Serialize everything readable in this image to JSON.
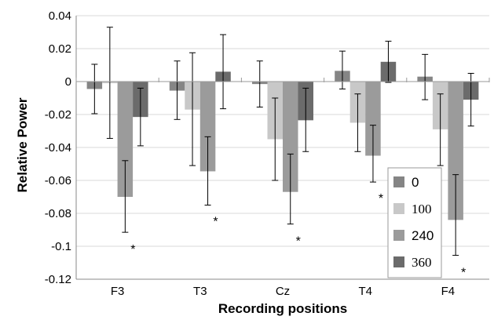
{
  "chart_data": {
    "type": "bar",
    "title": "",
    "xlabel": "Recording positions",
    "ylabel": "Relative Power",
    "categories": [
      "F3",
      "T3",
      "Cz",
      "T4",
      "F4"
    ],
    "ylim": [
      -0.12,
      0.04
    ],
    "yticks": [
      0.04,
      0.02,
      0,
      -0.02,
      -0.04,
      -0.06,
      -0.08,
      -0.1,
      -0.12
    ],
    "ytick_labels": [
      "0.04",
      "0.02",
      "0",
      "-0.02",
      "-0.04",
      "-0.06",
      "-0.08",
      "-0.1",
      "-0.12"
    ],
    "grid": "horizontal",
    "legend_position": "bottom-right",
    "series": [
      {
        "name": "0",
        "color": "#858585",
        "values": [
          -0.0045,
          -0.0055,
          -0.0015,
          0.0065,
          0.003
        ],
        "err_low": [
          -0.0195,
          -0.023,
          -0.0155,
          -0.0045,
          -0.011
        ],
        "err_high": [
          0.0105,
          0.0125,
          0.0125,
          0.0185,
          0.0165
        ]
      },
      {
        "name": "100",
        "color": "#c8c8c8",
        "values": [
          -0.001,
          -0.017,
          -0.035,
          -0.025,
          -0.029
        ],
        "err_low": [
          -0.0345,
          -0.051,
          -0.06,
          -0.0425,
          -0.051
        ],
        "err_high": [
          0.033,
          0.0175,
          -0.01,
          -0.0075,
          -0.0075
        ]
      },
      {
        "name": "240",
        "color": "#9b9b9b",
        "values": [
          -0.07,
          -0.0545,
          -0.067,
          -0.045,
          -0.084
        ],
        "err_low": [
          -0.0915,
          -0.075,
          -0.0865,
          -0.061,
          -0.1055
        ],
        "err_high": [
          -0.048,
          -0.0335,
          -0.044,
          -0.0265,
          -0.0565
        ]
      },
      {
        "name": "360",
        "color": "#6b6b6b",
        "values": [
          -0.0215,
          0.006,
          -0.0235,
          0.012,
          -0.011
        ],
        "err_low": [
          -0.039,
          -0.0165,
          -0.0425,
          -0.0005,
          -0.027
        ],
        "err_high": [
          -0.004,
          0.0285,
          -0.004,
          0.0245,
          0.005
        ]
      }
    ],
    "annotations": [
      {
        "text": "*",
        "category": "F3",
        "series": "240",
        "y": -0.1
      },
      {
        "text": "*",
        "category": "T3",
        "series": "240",
        "y": -0.083
      },
      {
        "text": "*",
        "category": "Cz",
        "series": "240",
        "y": -0.095
      },
      {
        "text": "*",
        "category": "T4",
        "series": "240",
        "y": -0.069
      },
      {
        "text": "*",
        "category": "F4",
        "series": "240",
        "y": -0.114
      }
    ]
  }
}
